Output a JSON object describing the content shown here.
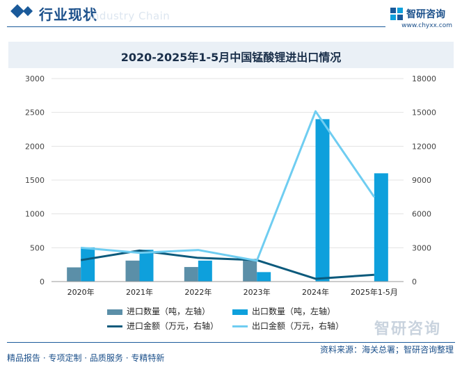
{
  "header": {
    "title": "行业现状",
    "ghost_text": "Industry Chain"
  },
  "brand": {
    "name": "智研咨询",
    "url": "www.chyxx.com",
    "watermark": "智研咨询"
  },
  "colors": {
    "import_qty": "#5b8fa8",
    "export_qty": "#0ea0dc",
    "import_value": "#0c5a7c",
    "export_value": "#6fcdf1",
    "accent": "#1a5a9a"
  },
  "chart_data": {
    "type": "bar",
    "title": "2020-2025年1-5月中国锰酸锂进出口情况",
    "categories": [
      "2020年",
      "2021年",
      "2022年",
      "2023年",
      "2024年",
      "2025年1-5月"
    ],
    "left_axis": {
      "min": 0,
      "max": 3000,
      "ticks": [
        "0",
        "500",
        "1000",
        "1500",
        "2000",
        "2500",
        "3000"
      ]
    },
    "right_axis": {
      "min": 0,
      "max": 18000,
      "ticks": [
        "0",
        "3000",
        "6000",
        "9000",
        "12000",
        "15000",
        "18000"
      ]
    },
    "series": [
      {
        "name": "进口数量（吨，左轴）",
        "type": "bar",
        "axis": "left",
        "values": [
          210,
          310,
          215,
          330,
          5,
          2
        ]
      },
      {
        "name": "出口数量（吨，左轴）",
        "type": "bar",
        "axis": "left",
        "values": [
          505,
          470,
          310,
          140,
          2400,
          1600
        ]
      },
      {
        "name": "进口金额（万元，右轴）",
        "type": "line",
        "axis": "right",
        "values": [
          1900,
          2750,
          2100,
          1900,
          250,
          600
        ]
      },
      {
        "name": "出口金额（万元，右轴）",
        "type": "line",
        "axis": "right",
        "values": [
          3000,
          2550,
          2800,
          1850,
          15100,
          7500
        ]
      }
    ],
    "grid": true,
    "legend_position": "bottom"
  },
  "footer": {
    "tags": "精品报告 · 专项定制 · 品质服务 · 专精特新",
    "source": "资料来源：海关总署；智研咨询整理"
  }
}
